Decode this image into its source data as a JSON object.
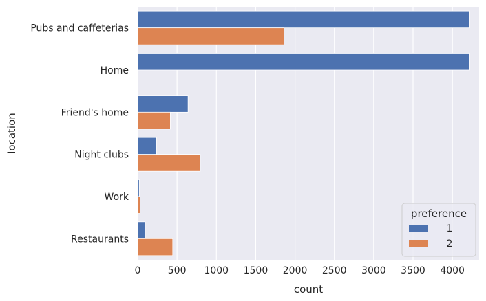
{
  "chart_data": {
    "type": "bar",
    "orientation": "horizontal",
    "categories": [
      "Pubs and caffeterias",
      "Home",
      "Friend's home",
      "Night clubs",
      "Work",
      "Restaurants"
    ],
    "series": [
      {
        "name": "1",
        "color": "#4c72b0",
        "values": [
          4220,
          4220,
          640,
          240,
          20,
          95
        ]
      },
      {
        "name": "2",
        "color": "#dd8452",
        "values": [
          1860,
          0,
          415,
          795,
          30,
          445
        ]
      }
    ],
    "xlabel": "count",
    "ylabel": "location",
    "xlim": [
      0,
      4340
    ],
    "xticks": [
      0,
      500,
      1000,
      1500,
      2000,
      2500,
      3000,
      3500,
      4000
    ],
    "grid": true,
    "legend": {
      "title": "preference",
      "position": "lower-right"
    },
    "colors": {
      "plot_background": "#eaeaf2",
      "grid": "#ffffff"
    }
  }
}
